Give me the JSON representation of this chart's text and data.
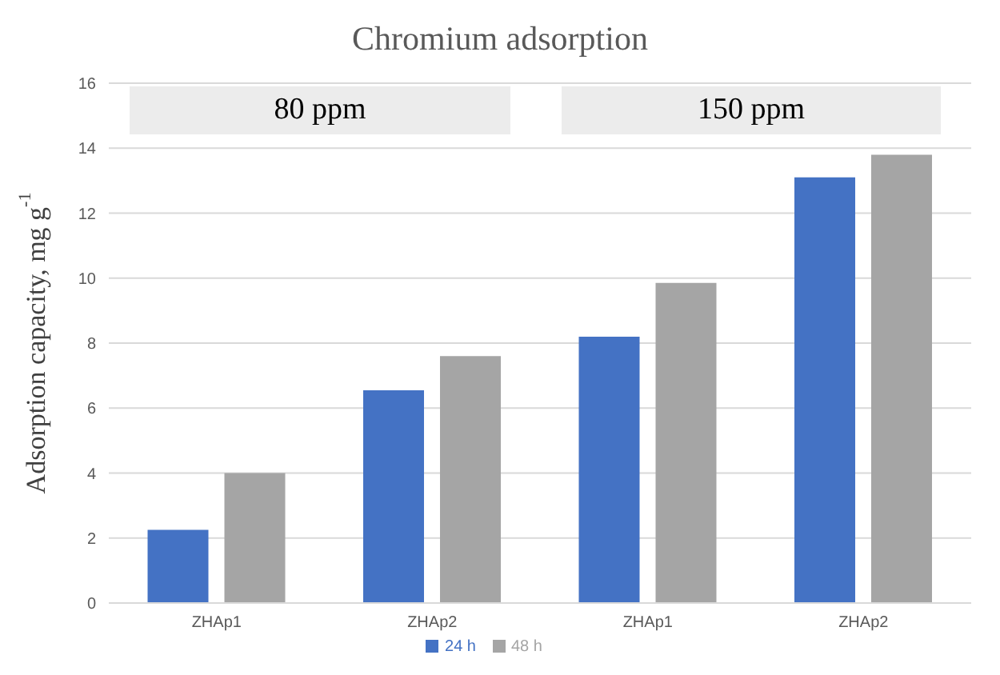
{
  "chart_data": {
    "type": "bar",
    "title": "Chromium adsorption",
    "ylabel": "Adsorption capacity, mg g$^{-1}$",
    "categories": [
      "ZHAp1",
      "ZHAp2",
      "ZHAp1",
      "ZHAp2"
    ],
    "series": [
      {
        "name": "24 h",
        "color": "#4472c4",
        "values": [
          2.25,
          6.55,
          8.2,
          13.1
        ]
      },
      {
        "name": "48 h",
        "color": "#a5a5a5",
        "values": [
          4.0,
          7.6,
          9.85,
          13.8
        ]
      }
    ],
    "ylim": [
      0,
      16
    ],
    "yticks": [
      0,
      2,
      4,
      6,
      8,
      10,
      12,
      14,
      16
    ],
    "grid": "y",
    "legend": "bottom",
    "annotations": [
      "80 ppm",
      "150 ppm"
    ]
  }
}
